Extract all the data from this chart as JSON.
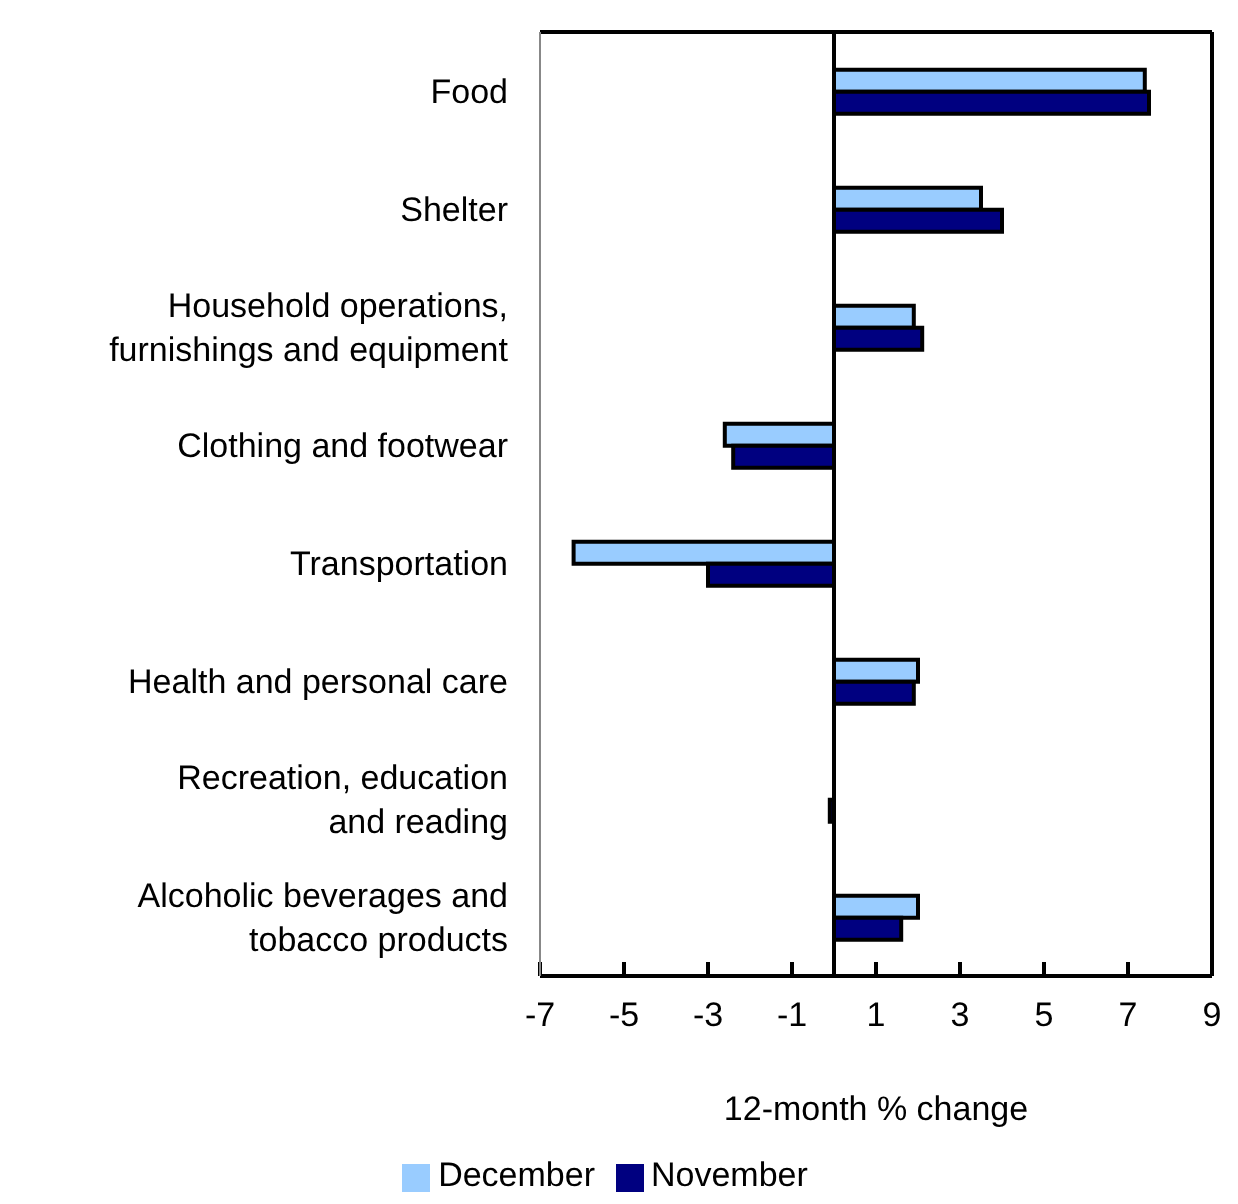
{
  "chart_data": {
    "type": "bar",
    "orientation": "horizontal",
    "categories": [
      "Food",
      "Shelter",
      "Household operations,\nfurnishings and equipment",
      "Clothing and footwear",
      "Transportation",
      "Health and personal care",
      "Recreation, education\nand reading",
      "Alcoholic beverages and\ntobacco products"
    ],
    "series": [
      {
        "name": "December",
        "color": "#99ccff",
        "values": [
          7.4,
          3.5,
          1.9,
          -2.6,
          -6.2,
          2.0,
          0,
          2.0
        ]
      },
      {
        "name": "November",
        "color": "#000080",
        "values": [
          7.5,
          4.0,
          2.1,
          -2.4,
          -3.0,
          1.9,
          -0.1,
          1.6
        ]
      }
    ],
    "xlim": [
      -7,
      9
    ],
    "xticks": [
      -7,
      -5,
      -3,
      -1,
      1,
      3,
      5,
      7,
      9
    ],
    "xlabel": "12-month % change",
    "legend": "bottom"
  }
}
